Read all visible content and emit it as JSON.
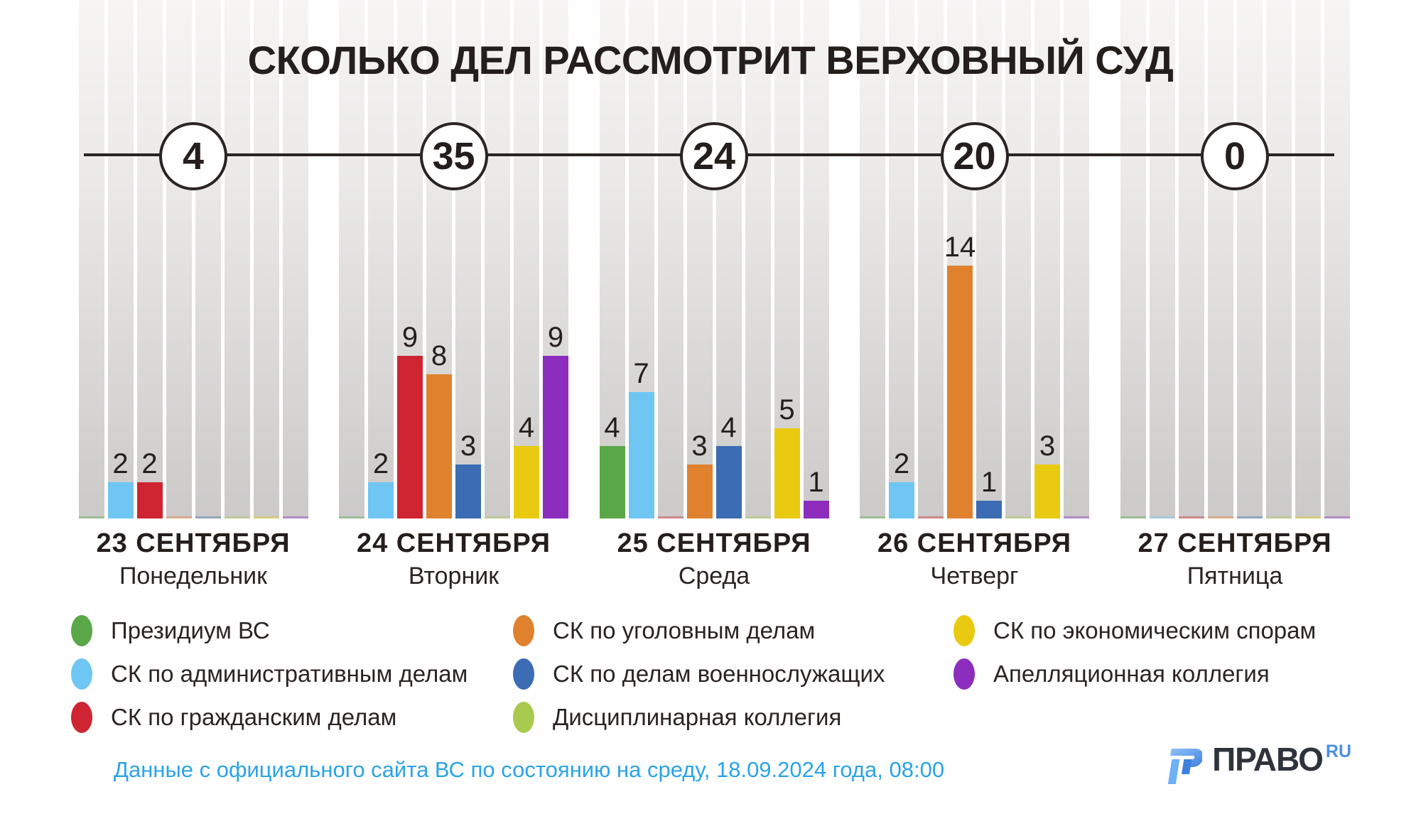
{
  "title": "СКОЛЬКО ДЕЛ РАССМОТРИТ ВЕРХОВНЫЙ СУД",
  "chart_data": {
    "type": "bar",
    "title": "СКОЛЬКО ДЕЛ РАССМОТРИТ ВЕРХОВНЫЙ СУД",
    "categories": [
      "23 СЕНТЯБРЯ",
      "24 СЕНТЯБРЯ",
      "25 СЕНТЯБРЯ",
      "26 СЕНТЯБРЯ",
      "27 СЕНТЯБРЯ"
    ],
    "weekdays": [
      "Понедельник",
      "Вторник",
      "Среда",
      "Четверг",
      "Пятница"
    ],
    "totals": [
      4,
      35,
      24,
      20,
      0
    ],
    "series": [
      {
        "name": "Президиум ВС",
        "color": "#5aa748",
        "values": [
          0,
          0,
          4,
          0,
          0
        ]
      },
      {
        "name": "СК по административным делам",
        "color": "#6fc6f3",
        "values": [
          2,
          2,
          7,
          2,
          0
        ]
      },
      {
        "name": "СК по гражданским делам",
        "color": "#cf2431",
        "values": [
          2,
          9,
          0,
          0,
          0
        ]
      },
      {
        "name": "СК по уголовным делам",
        "color": "#e0812e",
        "values": [
          0,
          8,
          3,
          14,
          0
        ]
      },
      {
        "name": "СК по делам военнослужащих",
        "color": "#3c6cb4",
        "values": [
          0,
          3,
          4,
          1,
          0
        ]
      },
      {
        "name": "Дисциплинарная коллегия",
        "color": "#a7ca4f",
        "values": [
          0,
          0,
          0,
          0,
          0
        ]
      },
      {
        "name": "СК по экономическим спорам",
        "color": "#eaca10",
        "values": [
          0,
          4,
          5,
          3,
          0
        ]
      },
      {
        "name": "Апелляционная коллегия",
        "color": "#8c2dbe",
        "values": [
          0,
          9,
          1,
          0,
          0
        ]
      }
    ],
    "ylim": [
      0,
      14
    ],
    "grid": false,
    "legend_position": "bottom"
  },
  "footer": {
    "source_note": "Данные с официального сайта ВС по состоянию на среду, 18.09.2024 года, 08:00",
    "source_color": "#2aa3e9"
  },
  "logo": {
    "text": "ПРАВО",
    "suffix": "RU",
    "text_color": "#2f333b",
    "accent_color": "#4a90e8"
  }
}
